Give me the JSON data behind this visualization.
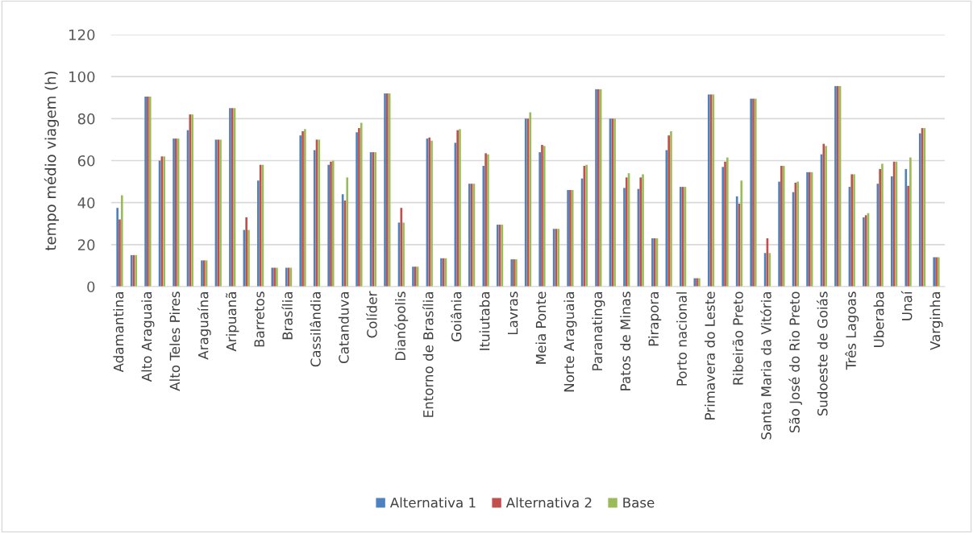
{
  "chart_data": {
    "type": "bar",
    "ylabel": "tempo médio viagem (h)",
    "categories": [
      "Adamantina",
      null,
      "Alto Araguaia",
      null,
      "Alto Teles Pires",
      null,
      "Araguaína",
      null,
      "Aripuanã",
      null,
      "Barretos",
      null,
      "Brasília",
      null,
      "Cassilândia",
      null,
      "Catanduva",
      null,
      "Colíder",
      null,
      "Dianópolis",
      null,
      "Entorno de Brasília",
      null,
      "Goiânia",
      null,
      "Ituiutaba",
      null,
      "Lavras",
      null,
      "Meia Ponte",
      null,
      "Norte Araguaia",
      null,
      "Paranatinga",
      null,
      "Patos de Minas",
      null,
      "Pirapora",
      null,
      "Porto nacional",
      null,
      "Primavera do Leste",
      null,
      "Ribeirão Preto",
      null,
      "Santa Maria da Vitória",
      null,
      "São José do Rio Preto",
      null,
      "Sudoeste de Goiás",
      null,
      "Três Lagoas",
      null,
      "Uberaba",
      null,
      "Unaí",
      null,
      "Varginha"
    ],
    "series": [
      {
        "name": "Alternativa 1",
        "color": "#4f81bd",
        "values": [
          37.5,
          15,
          90.5,
          60,
          70.5,
          74.5,
          12.5,
          70,
          85,
          27,
          50.5,
          9,
          9,
          72,
          65,
          58,
          44,
          73.5,
          64,
          92,
          30.5,
          9.5,
          70.5,
          13.5,
          68.5,
          49,
          57.5,
          29.5,
          13,
          80,
          64,
          27.5,
          46,
          51.5,
          94,
          80,
          47,
          46.5,
          23,
          65,
          47.5,
          4,
          91.5,
          57,
          43,
          89.5,
          16,
          50,
          45,
          54.5,
          63,
          95.5,
          47.5,
          33,
          49,
          52.5,
          56,
          73,
          14
        ]
      },
      {
        "name": "Alternativa 2",
        "color": "#c0504d",
        "values": [
          32,
          15,
          90.5,
          62,
          70.5,
          82,
          12.5,
          70,
          85,
          33,
          58,
          9,
          9,
          74,
          70,
          59.5,
          41,
          75.5,
          64,
          92,
          37.5,
          9.5,
          71,
          13.5,
          74.5,
          49,
          63.5,
          29.5,
          13,
          80,
          67.5,
          27.5,
          46,
          57.5,
          94,
          80,
          52,
          52,
          23,
          72,
          47.5,
          4,
          91.5,
          59.5,
          39.5,
          89.5,
          23,
          57.5,
          49.5,
          54.5,
          68,
          95.5,
          53.5,
          34,
          56,
          59.5,
          48,
          75.5,
          14
        ]
      },
      {
        "name": "Base",
        "color": "#9bbb59",
        "values": [
          43.5,
          15,
          90.5,
          62,
          70.5,
          82,
          12.5,
          70,
          85,
          27,
          58,
          9,
          9,
          75,
          70,
          60,
          52,
          78,
          64,
          92,
          30.5,
          9.5,
          69.5,
          13.5,
          75,
          49,
          63,
          29.5,
          13,
          83,
          67,
          27.5,
          46,
          58,
          94,
          80,
          54,
          53.5,
          23,
          74,
          47.5,
          4,
          91.5,
          61.5,
          50.5,
          89.5,
          16,
          57.5,
          50,
          54.5,
          67,
          95.5,
          53.5,
          35,
          58.5,
          59.5,
          61.5,
          75.5,
          14
        ]
      }
    ],
    "ylim": [
      0,
      120
    ],
    "yticks": [
      0,
      20,
      40,
      60,
      80,
      100,
      120
    ],
    "grid": "y",
    "legend": "bottom"
  }
}
